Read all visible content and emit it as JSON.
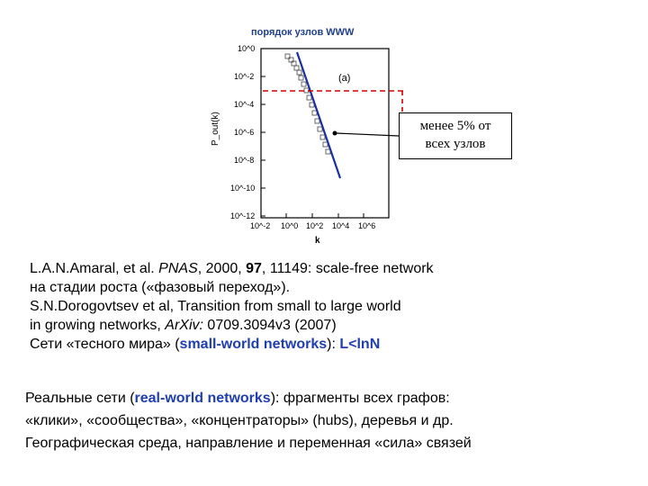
{
  "figure": {
    "title": "порядок узлов WWW",
    "panel_label": "(a)",
    "y_axis_label": "P_out(k)",
    "x_axis_label": "k",
    "y_ticks": [
      "10^0",
      "10^-2",
      "10^-4",
      "10^-6",
      "10^-8",
      "10^-10",
      "10^-12"
    ],
    "x_ticks": [
      "10^-2",
      "10^0",
      "10^2",
      "10^4",
      "10^6"
    ],
    "callout_line1": "менее 5% от",
    "callout_line2": "всех узлов",
    "colors": {
      "fit_line": "#1a2fa0",
      "threshold": "#d00000",
      "title": "#1f3f8a"
    }
  },
  "refs": {
    "l1": "L.A.N.Amaral, et al. ",
    "l1_journal": "PNAS",
    "l1_mid": ", 2000, ",
    "l1_vol": "97",
    "l1_end": ", 11149: scale-free network",
    "l2": "на стадии роста («фазовый переход»).",
    "l3": "S.N.Dorogovtsev et al, Transition from small to large world",
    "l4a": "in growing networks, ",
    "l4_arxiv": "ArXiv:",
    "l4b": " 0709.3094v3 (2007)",
    "l5a": "Сети «тесного мира» (",
    "l5_sw": "small-world networks",
    "l5b": "): ",
    "l5_formula": "L<lnN"
  },
  "real": {
    "l1a": "Реальные сети (",
    "l1_bold": "real-world networks",
    "l1b": "): фрагменты всех графов:",
    "l2": "«клики», «сообщества», «концентраторы» (hubs), деревья и др.",
    "l3": "Географическая среда, направление и переменная «сила» связей"
  }
}
